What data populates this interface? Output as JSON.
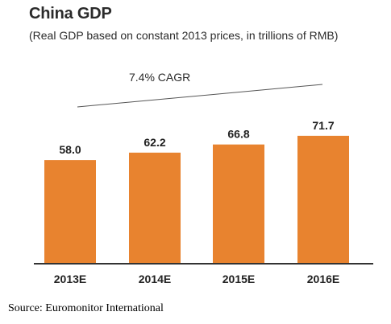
{
  "chart_data": {
    "type": "bar",
    "title": "China GDP",
    "subtitle": "(Real GDP based on constant 2013 prices, in trillions of RMB)",
    "categories": [
      "2013E",
      "2014E",
      "2015E",
      "2016E"
    ],
    "values": [
      58.0,
      62.2,
      66.8,
      71.7
    ],
    "value_labels": [
      "58.0",
      "62.2",
      "66.8",
      "71.7"
    ],
    "xlabel": "",
    "ylabel": "",
    "ylim": [
      0,
      80
    ],
    "grid": false,
    "bar_color": "#e8832f",
    "annotation": "7.4% CAGR"
  },
  "source": "Source: Euromonitor International"
}
